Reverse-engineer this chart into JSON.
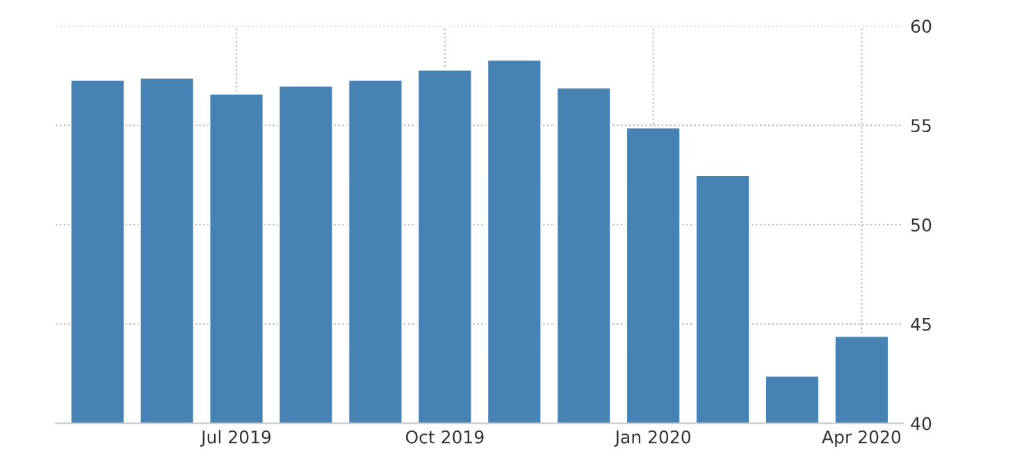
{
  "chart_data": {
    "type": "bar",
    "categories": [
      null,
      null,
      "Jul 2019",
      null,
      null,
      "Oct 2019",
      null,
      null,
      "Jan 2020",
      null,
      null,
      "Apr 2020"
    ],
    "values": [
      57.3,
      57.4,
      56.6,
      57.0,
      57.3,
      57.8,
      58.3,
      56.9,
      54.9,
      52.5,
      42.4,
      44.4
    ],
    "color": "#4682b4",
    "ylim": [
      40,
      60
    ],
    "yticks": [
      40,
      45,
      50,
      55,
      60
    ],
    "grid": true
  }
}
